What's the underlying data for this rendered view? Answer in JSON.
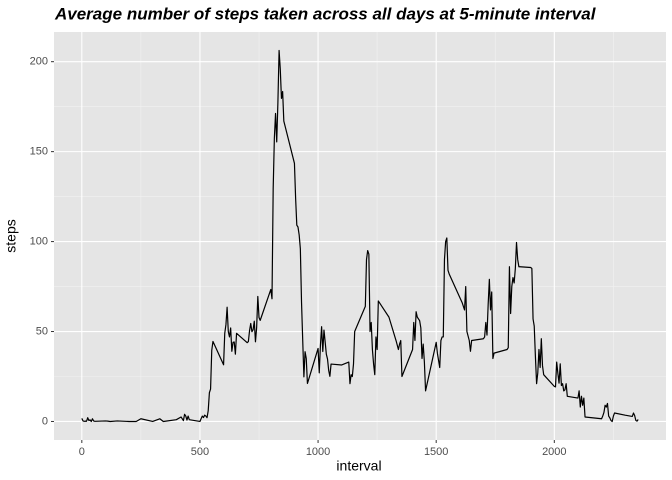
{
  "chart_data": {
    "type": "line",
    "title": "Average number of steps taken across all days at 5-minute interval",
    "x_label": "interval",
    "y_label": "steps",
    "x": [
      0,
      5,
      10,
      15,
      20,
      25,
      30,
      35,
      40,
      45,
      50,
      55,
      100,
      110,
      120,
      150,
      200,
      230,
      250,
      300,
      330,
      345,
      400,
      420,
      430,
      435,
      440,
      445,
      450,
      455,
      500,
      505,
      510,
      515,
      520,
      525,
      530,
      535,
      540,
      545,
      550,
      555,
      600,
      605,
      610,
      615,
      620,
      625,
      630,
      635,
      640,
      645,
      650,
      655,
      700,
      705,
      710,
      715,
      720,
      725,
      730,
      735,
      740,
      745,
      750,
      755,
      800,
      805,
      810,
      815,
      820,
      825,
      830,
      835,
      840,
      845,
      850,
      855,
      900,
      905,
      910,
      915,
      920,
      925,
      930,
      935,
      940,
      945,
      950,
      955,
      1000,
      1005,
      1010,
      1015,
      1020,
      1025,
      1030,
      1035,
      1040,
      1045,
      1050,
      1055,
      1100,
      1130,
      1135,
      1140,
      1145,
      1150,
      1155,
      1200,
      1205,
      1210,
      1215,
      1220,
      1225,
      1230,
      1235,
      1240,
      1245,
      1250,
      1255,
      1300,
      1330,
      1340,
      1345,
      1350,
      1355,
      1400,
      1405,
      1410,
      1415,
      1420,
      1430,
      1435,
      1440,
      1445,
      1450,
      1455,
      1500,
      1505,
      1510,
      1515,
      1520,
      1525,
      1530,
      1535,
      1540,
      1545,
      1550,
      1555,
      1610,
      1620,
      1625,
      1630,
      1640,
      1645,
      1650,
      1700,
      1705,
      1710,
      1715,
      1720,
      1725,
      1730,
      1735,
      1740,
      1745,
      1800,
      1805,
      1810,
      1815,
      1820,
      1825,
      1830,
      1835,
      1840,
      1845,
      1850,
      1855,
      1900,
      1905,
      1910,
      1915,
      1920,
      1925,
      1930,
      1935,
      1940,
      1945,
      1950,
      1955,
      2000,
      2005,
      2010,
      2015,
      2020,
      2025,
      2030,
      2035,
      2040,
      2045,
      2050,
      2055,
      2100,
      2105,
      2110,
      2115,
      2120,
      2125,
      2130,
      2200,
      2205,
      2210,
      2215,
      2220,
      2225,
      2230,
      2235,
      2240,
      2245,
      2250,
      2255,
      2300,
      2330,
      2335,
      2340,
      2345,
      2350,
      2355
    ],
    "values": [
      1.7,
      0.3,
      0.1,
      0.2,
      0.1,
      2.1,
      0.5,
      0.9,
      0,
      1.5,
      0.3,
      0.1,
      0.3,
      0.2,
      0,
      0.3,
      0,
      0,
      1.5,
      0,
      1.5,
      0,
      1,
      2.5,
      0.5,
      4,
      3,
      0.8,
      3,
      1,
      0,
      1.6,
      3,
      2.2,
      3.5,
      3,
      2.1,
      6,
      16,
      18,
      39.5,
      44.5,
      31.5,
      49,
      53.8,
      63.5,
      50,
      47,
      52,
      39,
      44,
      44.2,
      37.4,
      49,
      43.8,
      44.4,
      50.5,
      54.5,
      49.9,
      51,
      55.7,
      44.3,
      52.3,
      69.5,
      57.8,
      56.2,
      73.4,
      68.2,
      129.4,
      157.5,
      171.2,
      155.4,
      177.3,
      206.2,
      195.9,
      179.6,
      183.4,
      167,
      143.5,
      124,
      109.1,
      108.1,
      103.7,
      96,
      66.2,
      45.2,
      24.8,
      38.8,
      35,
      21.1,
      40.6,
      27,
      42.4,
      52.7,
      38.9,
      50.8,
      44.3,
      37.4,
      34.7,
      28.3,
      25.1,
      31.9,
      31.4,
      33,
      21,
      26,
      25,
      32,
      50,
      64,
      90,
      95,
      93,
      50,
      55,
      40,
      32,
      26,
      47,
      40,
      67,
      58,
      45,
      40,
      43,
      45,
      25,
      40,
      55,
      45,
      61,
      58,
      56,
      52,
      35,
      43,
      33,
      17,
      44,
      38,
      34,
      30,
      45,
      47,
      47,
      90,
      100,
      102,
      84,
      82,
      66,
      62,
      75,
      50,
      45,
      39,
      45,
      46,
      47,
      55,
      48,
      65,
      79,
      62,
      72,
      35,
      38,
      40,
      41,
      86,
      60,
      75,
      80,
      77,
      85,
      99.5,
      90,
      86,
      86,
      85.6,
      85,
      57,
      53,
      36,
      21,
      27,
      40,
      30,
      46,
      31,
      26,
      19.5,
      19.2,
      33,
      26.8,
      21.3,
      32,
      20,
      21,
      17,
      17.6,
      21,
      14,
      13,
      17,
      8,
      14,
      9,
      13,
      2.5,
      1.5,
      3,
      5,
      9,
      8,
      10,
      3,
      2,
      0.5,
      0,
      3,
      4.7,
      3.5,
      2.8,
      4.7,
      3.3,
      0.6,
      0.2,
      1.1
    ],
    "color": "#000000",
    "xlim": [
      -117.75,
      2472.75
    ],
    "xticks": [
      0,
      500,
      1000,
      1500,
      2000
    ],
    "x_minor_ticks": [
      250,
      750,
      1250,
      1750,
      2250
    ],
    "ylim": [
      -10.3,
      216.5
    ],
    "yticks": [
      0,
      50,
      100,
      150,
      200
    ],
    "y_minor_ticks": [
      25,
      75,
      125,
      175
    ],
    "grid": true
  }
}
